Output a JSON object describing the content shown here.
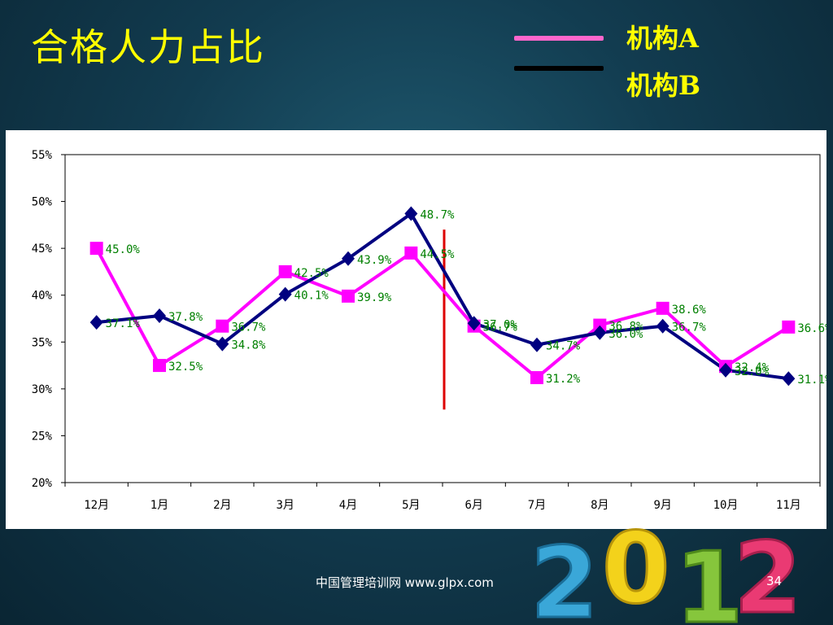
{
  "slide": {
    "title": "合格人力占比",
    "footer": "中国管理培训网  www.glpx.com",
    "page_number": "34",
    "decoration_text": "2012"
  },
  "legend": [
    {
      "label": "机构A",
      "color": "#ff66cc"
    },
    {
      "label": "机构B",
      "color": "#000000"
    }
  ],
  "chart_data": {
    "type": "line",
    "categories": [
      "12月",
      "1月",
      "2月",
      "3月",
      "4月",
      "5月",
      "6月",
      "7月",
      "8月",
      "9月",
      "10月",
      "11月"
    ],
    "series": [
      {
        "name": "机构A",
        "color": "#ff00ff",
        "marker": "square",
        "values": [
          45.0,
          32.5,
          36.7,
          42.5,
          39.9,
          44.5,
          36.7,
          31.2,
          36.8,
          38.6,
          32.4,
          36.6
        ]
      },
      {
        "name": "机构B",
        "color": "#000080",
        "marker": "diamond",
        "values": [
          37.1,
          37.8,
          34.8,
          40.1,
          43.9,
          48.7,
          37.0,
          34.7,
          36.0,
          36.7,
          32.0,
          31.1
        ]
      }
    ],
    "y_ticks": [
      "55%",
      "50%",
      "45%",
      "40%",
      "35%",
      "30%",
      "25%",
      "20%"
    ],
    "ylim": [
      20,
      55
    ],
    "value_unit": "%",
    "divider": {
      "after_category": "5月",
      "color": "#dd0000"
    },
    "grid": false,
    "title": "",
    "xlabel": "",
    "ylabel": ""
  },
  "colors": {
    "title": "#ffff00",
    "data_label": "#008000",
    "divider": "#dd0000"
  }
}
